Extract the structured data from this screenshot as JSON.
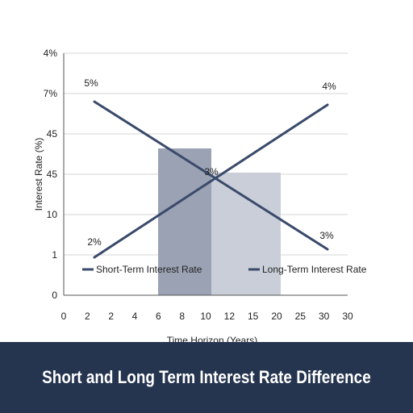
{
  "title": "Short and Long Term Interest Rate Difference",
  "colors": {
    "line": "#3a4a6b",
    "shade_dark": "#9aa2b3",
    "shade_light": "#c9ced8",
    "banner": "#25344f",
    "grid": "#d4d4d4"
  },
  "chart_data": {
    "type": "line",
    "title": "Short and Long Term Interest Rate Difference",
    "xlabel": "Time Horizon (Years)",
    "ylabel": "Interest Rate (%)",
    "x_ticks": [
      "0",
      "2",
      "2",
      "4",
      "6",
      "8",
      "10",
      "12",
      "15",
      "20",
      "25",
      "30",
      "30"
    ],
    "y_ticks": [
      "0",
      "1",
      "10",
      "45",
      "45",
      "7%",
      "4%"
    ],
    "grid": "horizontal",
    "legend_position": "bottom-inside",
    "series": [
      {
        "name": "Short-Term Interest Rate",
        "labels": [
          "5%",
          "3%"
        ]
      },
      {
        "name": "Long-Term Interest Rate",
        "labels": [
          "2%",
          "3%",
          "4%"
        ]
      }
    ],
    "shaded_regions": [
      {
        "from_tick": "10",
        "to_tick": "12",
        "style": "dark"
      },
      {
        "from_tick": "12",
        "to_tick": "20",
        "style": "light"
      }
    ]
  }
}
